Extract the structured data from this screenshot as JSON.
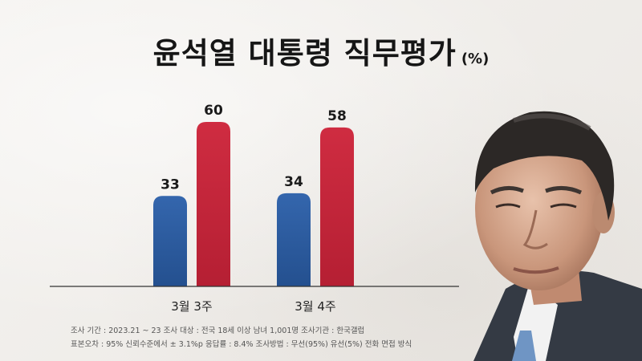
{
  "title": "윤석열 대통령 직무평가",
  "unit": "(%)",
  "chart_data": {
    "type": "bar",
    "categories": [
      "3월 3주",
      "3월 4주"
    ],
    "series": [
      {
        "values": [
          33,
          34
        ],
        "color": "#2f5fa6"
      },
      {
        "values": [
          60,
          58
        ],
        "color": "#c5283d"
      }
    ],
    "ylim": [
      0,
      70
    ],
    "grid": false,
    "legend": "none"
  },
  "footnotes": [
    "조사 기간 : 2023.21 ~ 23   조사 대상 : 전국 18세 이상 남녀 1,001명   조사기관 : 한국갤럽",
    "표본오차 : 95% 신뢰수준에서 ± 3.1%p   응답률 : 8.4%   조사방법 : 무선(95%) 유선(5%) 전화 면접 방식"
  ]
}
